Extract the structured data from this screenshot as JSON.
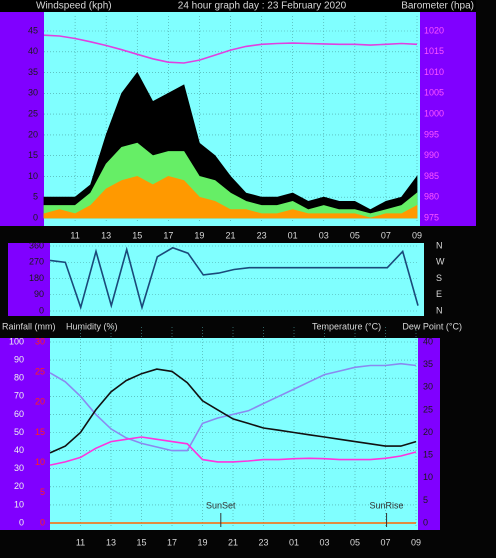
{
  "chart_data": [
    {
      "type": "area",
      "title": "24 hour graph day : 23 February 2020",
      "ylabel": "Windspeed (kph)",
      "y2label": "Barometer (hpa)",
      "x": [
        0,
        1,
        2,
        3,
        4,
        5,
        6,
        7,
        8,
        9,
        10,
        11,
        12,
        13,
        14,
        15,
        16,
        17,
        18,
        19,
        20,
        21,
        22,
        23,
        24
      ],
      "xlim": [
        0,
        24
      ],
      "xticks": [
        {
          "value": 2,
          "label": "11"
        },
        {
          "value": 4,
          "label": "13"
        },
        {
          "value": 6,
          "label": "15"
        },
        {
          "value": 8,
          "label": "17"
        },
        {
          "value": 10,
          "label": "19"
        },
        {
          "value": 12,
          "label": "21"
        },
        {
          "value": 14,
          "label": "23"
        },
        {
          "value": 16,
          "label": "01"
        },
        {
          "value": 18,
          "label": "03"
        },
        {
          "value": 20,
          "label": "05"
        },
        {
          "value": 22,
          "label": "07"
        },
        {
          "value": 24,
          "label": "09"
        }
      ],
      "ylim": [
        0,
        45
      ],
      "yticks": [
        0,
        5,
        10,
        15,
        20,
        25,
        30,
        35,
        40,
        45
      ],
      "y2lim": [
        975,
        1020
      ],
      "y2ticks": [
        975,
        980,
        985,
        990,
        995,
        1000,
        1005,
        1010,
        1015,
        1020
      ],
      "grid": true,
      "series": [
        {
          "color": "#000000",
          "values": [
            5,
            5,
            5,
            8,
            20,
            30,
            35,
            28,
            30,
            32,
            18,
            15,
            10,
            6,
            5,
            5,
            6,
            4,
            5,
            4,
            4,
            2,
            4,
            5,
            10
          ]
        },
        {
          "color": "#66ee66",
          "values": [
            3,
            3,
            3,
            6,
            13,
            17,
            18,
            15,
            16,
            16,
            10,
            9,
            6,
            4,
            3,
            3,
            4,
            2,
            3,
            2,
            2,
            1,
            2,
            3,
            6
          ]
        },
        {
          "color": "#ff9900",
          "values": [
            1,
            2,
            1,
            3,
            7,
            9,
            10,
            8,
            10,
            9,
            5,
            4,
            2,
            2,
            1,
            1,
            2,
            1,
            1,
            1,
            1,
            0,
            1,
            1,
            3
          ]
        },
        {
          "type": "line",
          "axis": "y2",
          "color": "#e040e0",
          "values": [
            1019,
            1018.8,
            1018.2,
            1017.4,
            1016.5,
            1015.5,
            1014.4,
            1013.3,
            1012.5,
            1012.3,
            1013,
            1014.2,
            1015.4,
            1016.3,
            1016.8,
            1017,
            1017.1,
            1017,
            1016.9,
            1016.8,
            1016.8,
            1016.6,
            1016.8,
            1017,
            1016.8
          ]
        }
      ]
    },
    {
      "type": "line",
      "x": [
        0,
        1,
        2,
        3,
        4,
        5,
        6,
        7,
        8,
        9,
        10,
        11,
        12,
        13,
        14,
        15,
        16,
        17,
        18,
        19,
        20,
        21,
        22,
        23,
        24
      ],
      "xlim": [
        0,
        24
      ],
      "ylim": [
        0,
        360
      ],
      "yticks": [
        0,
        90,
        180,
        270,
        360
      ],
      "y2lim": [
        0,
        360
      ],
      "y2ticks": [
        {
          "value": 360,
          "label": "N"
        },
        {
          "value": 270,
          "label": "W"
        },
        {
          "value": 180,
          "label": "S"
        },
        {
          "value": 90,
          "label": "E"
        },
        {
          "value": 0,
          "label": "N"
        }
      ],
      "grid": true,
      "series": [
        {
          "color": "#1a4a7a",
          "values": [
            280,
            270,
            20,
            330,
            30,
            340,
            20,
            300,
            350,
            320,
            200,
            210,
            230,
            240,
            240,
            240,
            240,
            240,
            240,
            240,
            240,
            240,
            240,
            330,
            30
          ]
        }
      ]
    },
    {
      "type": "line",
      "x": [
        0,
        1,
        2,
        3,
        4,
        5,
        6,
        7,
        8,
        9,
        10,
        11,
        12,
        13,
        14,
        15,
        16,
        17,
        18,
        19,
        20,
        21,
        22,
        23,
        24
      ],
      "xlim": [
        0,
        24
      ],
      "xticks": [
        {
          "value": 2,
          "label": "11"
        },
        {
          "value": 4,
          "label": "13"
        },
        {
          "value": 6,
          "label": "15"
        },
        {
          "value": 8,
          "label": "17"
        },
        {
          "value": 10,
          "label": "19"
        },
        {
          "value": 12,
          "label": "21"
        },
        {
          "value": 14,
          "label": "23"
        },
        {
          "value": 16,
          "label": "01"
        },
        {
          "value": 18,
          "label": "03"
        },
        {
          "value": 20,
          "label": "05"
        },
        {
          "value": 22,
          "label": "07"
        },
        {
          "value": 24,
          "label": "09"
        }
      ],
      "ylim": [
        0,
        100
      ],
      "yticks": [
        0,
        10,
        20,
        30,
        40,
        50,
        60,
        70,
        80,
        90,
        100
      ],
      "y2lim": [
        0,
        40
      ],
      "y2ticks": [
        0,
        5,
        10,
        15,
        20,
        25,
        30,
        35,
        40
      ],
      "y3lim": [
        0,
        30
      ],
      "y3ticks": [
        0,
        5,
        10,
        15,
        20,
        25,
        30
      ],
      "grid": true,
      "series": [
        {
          "name": "Rainfall (mm)",
          "axis": "y3",
          "color": "#ff6600",
          "values": [
            0,
            0,
            0,
            0,
            0,
            0,
            0,
            0,
            0,
            0,
            0,
            0,
            0,
            0,
            0,
            0,
            0,
            0,
            0,
            0,
            0,
            0,
            0,
            0,
            0
          ]
        },
        {
          "name": "Humidity (%)",
          "color": "#8a8af0",
          "values": [
            83,
            78,
            70,
            60,
            52,
            47,
            44,
            42,
            40,
            40,
            55,
            58,
            60,
            62,
            66,
            70,
            74,
            78,
            82,
            84,
            86,
            87,
            87,
            88,
            87
          ]
        },
        {
          "name": "Temperature (°C)",
          "axis": "y2",
          "color": "#111111",
          "values": [
            15.5,
            17,
            20,
            25,
            29,
            31.5,
            33,
            34,
            33.5,
            31,
            27,
            25,
            23,
            22,
            21,
            20.5,
            20,
            19.5,
            19,
            18.5,
            18,
            17.5,
            17,
            17,
            18
          ]
        },
        {
          "name": "Dew Point (°C)",
          "axis": "y2",
          "color": "#ff33dd",
          "values": [
            12.8,
            13.5,
            14.5,
            16.5,
            18,
            18.5,
            19,
            18.5,
            18,
            17.5,
            14,
            13.5,
            13.5,
            13.7,
            14,
            14,
            14.2,
            14.3,
            14.2,
            14,
            14,
            14,
            14.3,
            14.8,
            15.7
          ]
        }
      ],
      "annotations": [
        {
          "label": "SunSet",
          "x": 11.2
        },
        {
          "label": "SunRise",
          "x": 22.07
        }
      ]
    }
  ]
}
